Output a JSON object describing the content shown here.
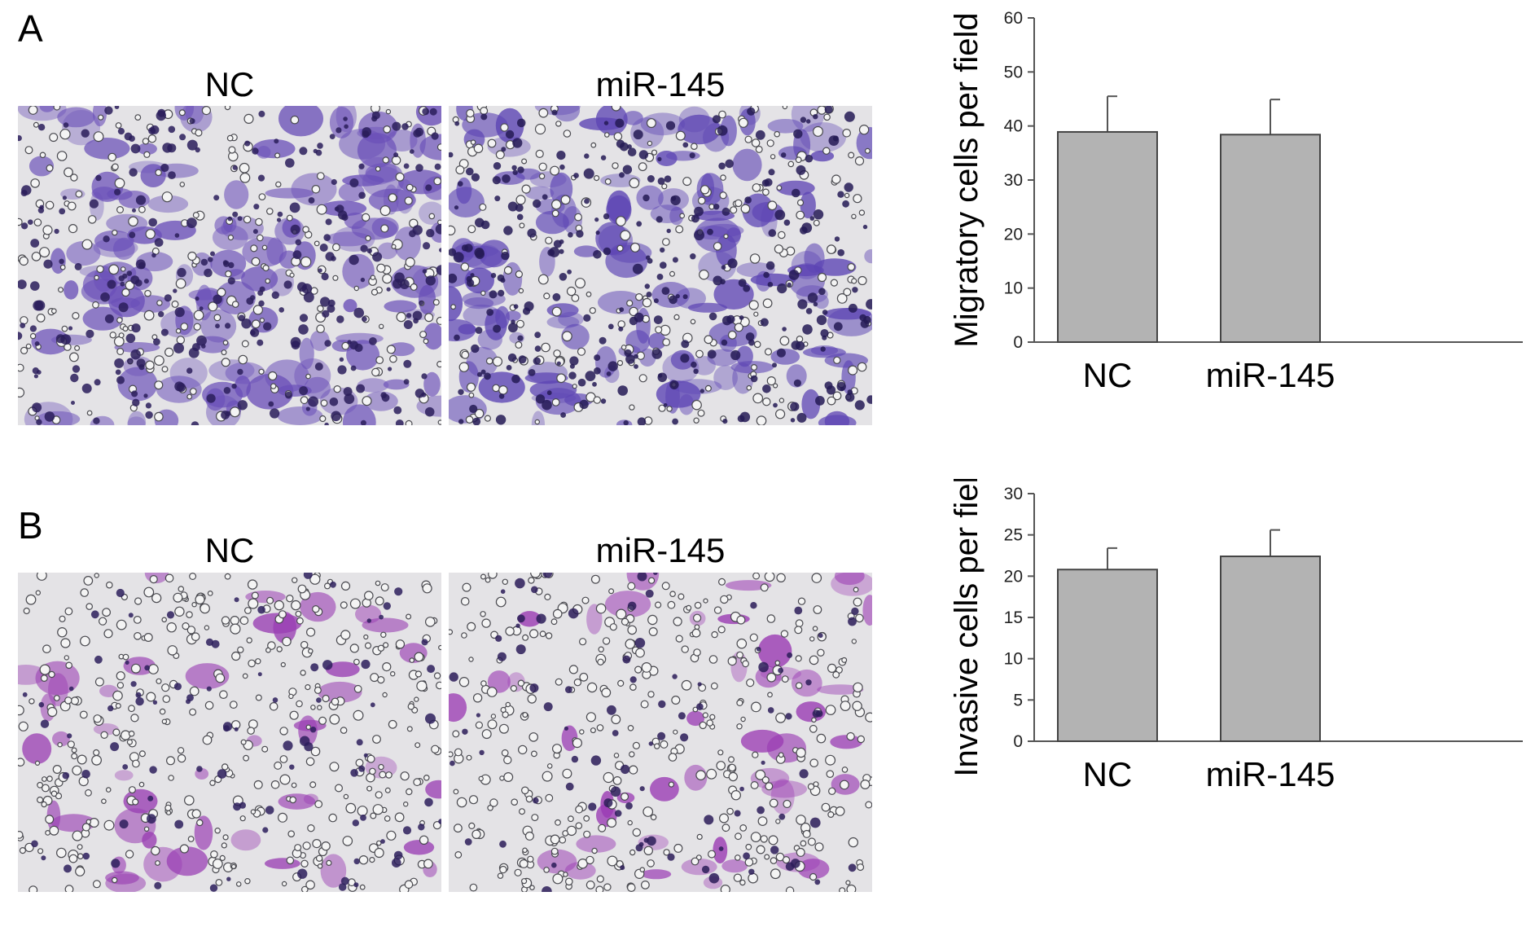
{
  "panels": [
    {
      "letter": "A",
      "images": [
        {
          "label": "NC",
          "stain": "#6a4fb8",
          "nucleus": "#2a1d5a"
        },
        {
          "label": "miR-145",
          "stain": "#5d45b4",
          "nucleus": "#251a55"
        }
      ]
    },
    {
      "letter": "B",
      "images": [
        {
          "label": "NC",
          "stain": "#9a3fb3",
          "nucleus": "#2d1f5c"
        },
        {
          "label": "miR-145",
          "stain": "#9a3ab3",
          "nucleus": "#2b1c58"
        }
      ]
    }
  ],
  "chart_data": [
    {
      "type": "bar",
      "categories": [
        "NC",
        "miR-145"
      ],
      "values": [
        38.9,
        38.4
      ],
      "errors": [
        6.6,
        6.5
      ],
      "ylabel": "Migratory cells per field",
      "xlabel": "",
      "ylim": [
        0,
        60
      ],
      "yticks": [
        0,
        10,
        20,
        30,
        40,
        50,
        60
      ],
      "bar_color": "#b3b3b3",
      "grid": false
    },
    {
      "type": "bar",
      "categories": [
        "NC",
        "miR-145"
      ],
      "values": [
        20.8,
        22.4
      ],
      "errors": [
        2.6,
        3.2
      ],
      "ylabel": "Invasive cells per field",
      "xlabel": "",
      "ylim": [
        0,
        30
      ],
      "yticks": [
        0,
        5,
        10,
        15,
        20,
        25,
        30
      ],
      "bar_color": "#b3b3b3",
      "grid": false
    }
  ]
}
